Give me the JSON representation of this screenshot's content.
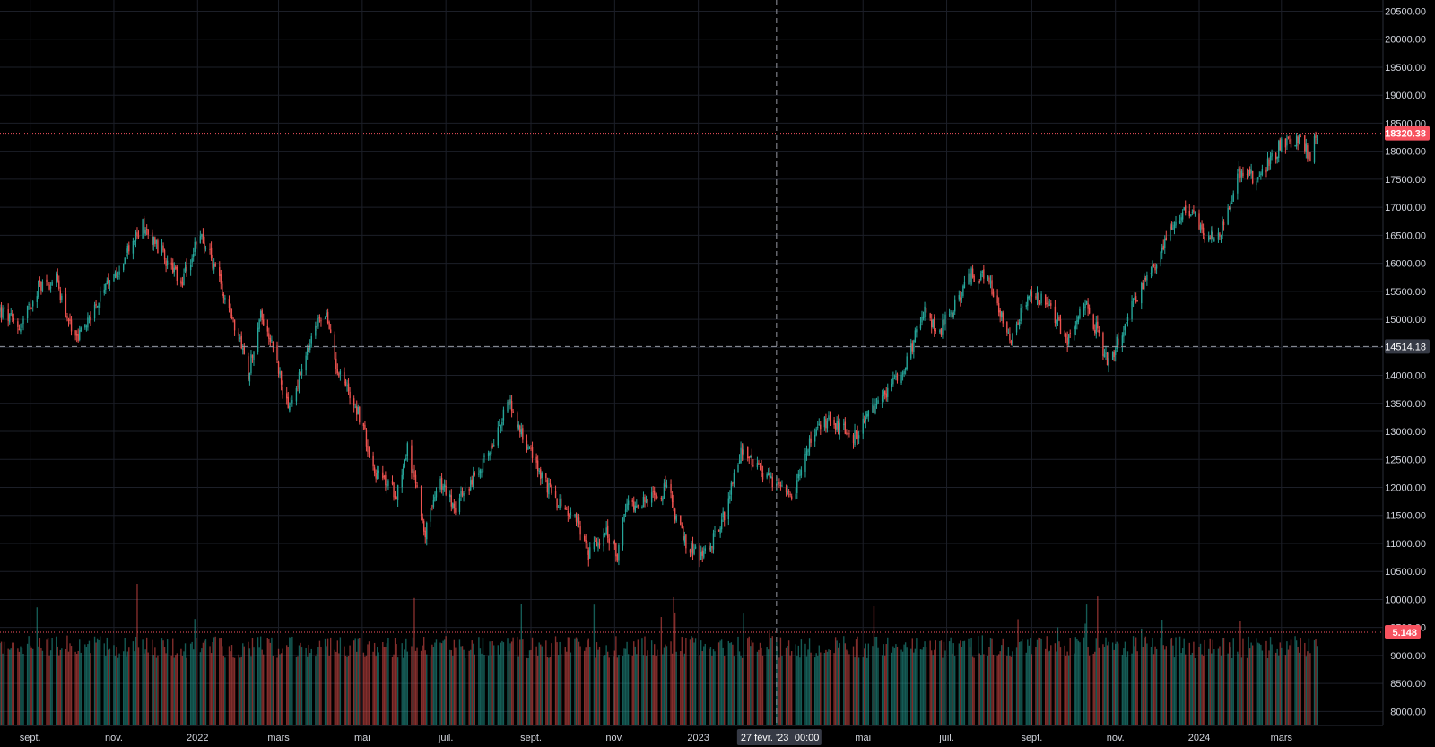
{
  "chart_data": {
    "type": "candlestick",
    "title": "",
    "xlabel": "",
    "ylabel": "",
    "ylim": [
      7750,
      20700
    ],
    "y_ticks": [
      8000,
      8500,
      9000,
      9500,
      10000,
      10500,
      11000,
      11500,
      12000,
      12500,
      13000,
      13500,
      14000,
      14500,
      15000,
      15500,
      16000,
      16500,
      17000,
      17500,
      18000,
      18500,
      19000,
      19500,
      20000,
      20500
    ],
    "y_tick_labels": [
      "8000.00",
      "8500.00",
      "9000.00",
      "9500.00",
      "10000.00",
      "10500.00",
      "11000.00",
      "11500.00",
      "12000.00",
      "12500.00",
      "13000.00",
      "13500.00",
      "14000.00",
      "14500.00",
      "15000.00",
      "15500.00",
      "16000.00",
      "16500.00",
      "17000.00",
      "17500.00",
      "18000.00",
      "18500.00",
      "19000.00",
      "19500.00",
      "20000.00",
      "20500.00"
    ],
    "x_range": [
      "2021-08-10",
      "2024-05-14"
    ],
    "x_ticks": [
      {
        "label": "sept.",
        "date": "2021-09-01"
      },
      {
        "label": "nov.",
        "date": "2021-11-01"
      },
      {
        "label": "2022",
        "date": "2022-01-01"
      },
      {
        "label": "mars",
        "date": "2022-03-01"
      },
      {
        "label": "mai",
        "date": "2022-05-01"
      },
      {
        "label": "juil.",
        "date": "2022-07-01"
      },
      {
        "label": "sept.",
        "date": "2022-09-01"
      },
      {
        "label": "nov.",
        "date": "2022-11-01"
      },
      {
        "label": "2023",
        "date": "2023-01-01"
      },
      {
        "label": "mai",
        "date": "2023-05-01"
      },
      {
        "label": "juil.",
        "date": "2023-07-01"
      },
      {
        "label": "sept.",
        "date": "2023-09-01"
      },
      {
        "label": "nov.",
        "date": "2023-11-01"
      },
      {
        "label": "2024",
        "date": "2024-01-01"
      },
      {
        "label": "mars",
        "date": "2024-03-01"
      }
    ],
    "price_path": [
      [
        "2021-08-10",
        15150
      ],
      [
        "2021-08-25",
        14850
      ],
      [
        "2021-09-07",
        15600
      ],
      [
        "2021-09-20",
        15700
      ],
      [
        "2021-10-04",
        14600
      ],
      [
        "2021-10-15",
        15100
      ],
      [
        "2021-11-02",
        15800
      ],
      [
        "2021-11-22",
        16700
      ],
      [
        "2021-12-06",
        16200
      ],
      [
        "2021-12-20",
        15600
      ],
      [
        "2022-01-03",
        16550
      ],
      [
        "2022-01-14",
        15900
      ],
      [
        "2022-01-27",
        15000
      ],
      [
        "2022-02-07",
        14050
      ],
      [
        "2022-02-16",
        15100
      ],
      [
        "2022-02-25",
        14550
      ],
      [
        "2022-03-08",
        13350
      ],
      [
        "2022-03-29",
        14900
      ],
      [
        "2022-04-04",
        15150
      ],
      [
        "2022-04-12",
        14200
      ],
      [
        "2022-04-28",
        13350
      ],
      [
        "2022-05-11",
        12250
      ],
      [
        "2022-05-26",
        11900
      ],
      [
        "2022-06-03",
        12700
      ],
      [
        "2022-06-16",
        11200
      ],
      [
        "2022-06-27",
        12100
      ],
      [
        "2022-07-08",
        11650
      ],
      [
        "2022-07-29",
        12450
      ],
      [
        "2022-08-16",
        13550
      ],
      [
        "2022-08-30",
        12700
      ],
      [
        "2022-09-13",
        12000
      ],
      [
        "2022-09-22",
        11700
      ],
      [
        "2022-10-06",
        11350
      ],
      [
        "2022-10-13",
        10800
      ],
      [
        "2022-10-25",
        11200
      ],
      [
        "2022-11-03",
        10800
      ],
      [
        "2022-11-10",
        11700
      ],
      [
        "2022-11-30",
        11800
      ],
      [
        "2022-12-09",
        12000
      ],
      [
        "2022-12-22",
        11000
      ],
      [
        "2023-01-05",
        10750
      ],
      [
        "2023-01-20",
        11500
      ],
      [
        "2023-02-02",
        12700
      ],
      [
        "2023-02-15",
        12250
      ],
      [
        "2023-02-27",
        12000
      ],
      [
        "2023-03-10",
        11750
      ],
      [
        "2023-03-23",
        12800
      ],
      [
        "2023-04-05",
        13200
      ],
      [
        "2023-04-25",
        12900
      ],
      [
        "2023-05-18",
        13700
      ],
      [
        "2023-05-31",
        14200
      ],
      [
        "2023-06-15",
        15100
      ],
      [
        "2023-06-26",
        14800
      ],
      [
        "2023-07-07",
        15250
      ],
      [
        "2023-07-19",
        15800
      ],
      [
        "2023-07-31",
        15700
      ],
      [
        "2023-08-17",
        14650
      ],
      [
        "2023-08-31",
        15500
      ],
      [
        "2023-09-15",
        15200
      ],
      [
        "2023-09-26",
        14600
      ],
      [
        "2023-10-11",
        15300
      ],
      [
        "2023-10-27",
        14200
      ],
      [
        "2023-11-14",
        15300
      ],
      [
        "2023-11-30",
        16000
      ],
      [
        "2023-12-14",
        16800
      ],
      [
        "2023-12-27",
        16950
      ],
      [
        "2024-01-05",
        16400
      ],
      [
        "2024-01-17",
        16600
      ],
      [
        "2024-01-30",
        17600
      ],
      [
        "2024-02-13",
        17500
      ],
      [
        "2024-02-29",
        18100
      ],
      [
        "2024-03-14",
        18200
      ],
      [
        "2024-03-22",
        17900
      ],
      [
        "2024-03-27",
        18320
      ]
    ],
    "price_line": {
      "value": 18320.38,
      "label": "18320.38",
      "color": "#f7525f"
    },
    "volume_line": {
      "label": "5.148",
      "color": "#f7525f"
    },
    "crosshair": {
      "date_label": "27 févr. '23",
      "time_label": "00:00",
      "price_label": "14514.18",
      "price_value": 14514.18
    },
    "up_color": "#26a69a",
    "down_color": "#ef5350",
    "grid": true,
    "background": "#000000"
  }
}
